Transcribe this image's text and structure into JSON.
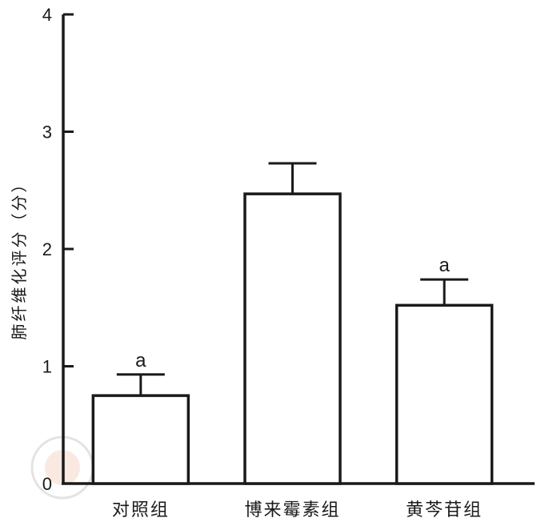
{
  "chart_data": {
    "type": "bar",
    "ylabel": "肺纤维化评分（分）",
    "xlabel": "",
    "title": "",
    "ylim": [
      0,
      4
    ],
    "yticks": [
      "0",
      "1",
      "2",
      "3",
      "4"
    ],
    "categories": [
      "对照组",
      "博来霉素组",
      "黄芩苷组"
    ],
    "values": [
      0.75,
      2.47,
      1.52
    ],
    "errors": [
      0.18,
      0.26,
      0.22
    ],
    "annotations": [
      "a",
      "",
      "a"
    ],
    "grid": false,
    "bar_fill": "#ffffff",
    "bar_stroke": "#1a1a1a"
  }
}
